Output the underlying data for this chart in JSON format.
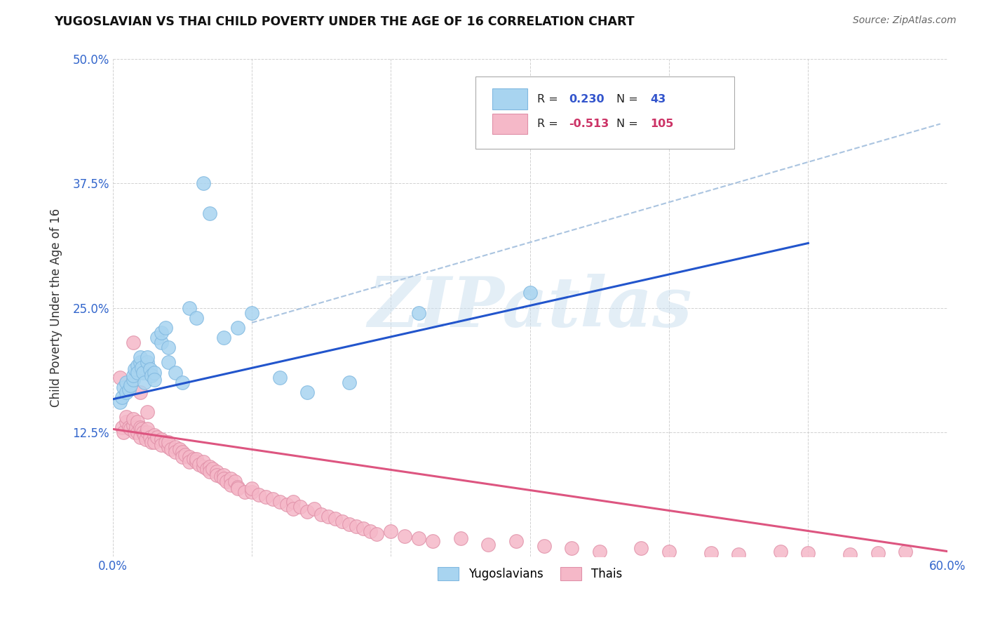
{
  "title": "YUGOSLAVIAN VS THAI CHILD POVERTY UNDER THE AGE OF 16 CORRELATION CHART",
  "source": "Source: ZipAtlas.com",
  "ylabel": "Child Poverty Under the Age of 16",
  "xlim": [
    0.0,
    0.6
  ],
  "ylim": [
    0.0,
    0.5
  ],
  "xticks": [
    0.0,
    0.1,
    0.2,
    0.3,
    0.4,
    0.5,
    0.6
  ],
  "xticklabels": [
    "0.0%",
    "",
    "",
    "",
    "",
    "",
    "60.0%"
  ],
  "yticks": [
    0.0,
    0.125,
    0.25,
    0.375,
    0.5
  ],
  "yticklabels": [
    "",
    "12.5%",
    "25.0%",
    "37.5%",
    "50.0%"
  ],
  "grid_color": "#cccccc",
  "background_color": "#ffffff",
  "watermark_text": "ZIPatlas",
  "yug_color": "#a8d4f0",
  "yug_edge_color": "#80b8e0",
  "thai_color": "#f5b8c8",
  "thai_edge_color": "#e090a8",
  "yug_R": 0.23,
  "yug_N": 43,
  "thai_R": -0.513,
  "thai_N": 105,
  "legend_label_yug": "Yugoslavians",
  "legend_label_thai": "Thais",
  "yug_line_color": "#2255cc",
  "thai_line_color": "#dd5580",
  "trend_line_color": "#aac4e0",
  "yug_scatter_x": [
    0.005,
    0.007,
    0.008,
    0.01,
    0.01,
    0.012,
    0.013,
    0.015,
    0.015,
    0.016,
    0.018,
    0.018,
    0.02,
    0.02,
    0.021,
    0.022,
    0.023,
    0.025,
    0.025,
    0.027,
    0.028,
    0.03,
    0.03,
    0.032,
    0.035,
    0.035,
    0.038,
    0.04,
    0.04,
    0.045,
    0.05,
    0.055,
    0.06,
    0.065,
    0.07,
    0.08,
    0.09,
    0.1,
    0.12,
    0.14,
    0.17,
    0.22,
    0.3
  ],
  "yug_scatter_y": [
    0.155,
    0.16,
    0.17,
    0.165,
    0.175,
    0.168,
    0.172,
    0.178,
    0.182,
    0.188,
    0.192,
    0.185,
    0.195,
    0.2,
    0.19,
    0.185,
    0.175,
    0.195,
    0.2,
    0.188,
    0.182,
    0.185,
    0.178,
    0.22,
    0.215,
    0.225,
    0.23,
    0.21,
    0.195,
    0.185,
    0.175,
    0.25,
    0.24,
    0.375,
    0.345,
    0.22,
    0.23,
    0.245,
    0.18,
    0.165,
    0.175,
    0.245,
    0.265
  ],
  "thai_scatter_x": [
    0.005,
    0.007,
    0.008,
    0.01,
    0.01,
    0.012,
    0.013,
    0.015,
    0.015,
    0.016,
    0.017,
    0.018,
    0.018,
    0.02,
    0.02,
    0.021,
    0.022,
    0.023,
    0.024,
    0.025,
    0.025,
    0.027,
    0.028,
    0.03,
    0.03,
    0.032,
    0.035,
    0.035,
    0.038,
    0.04,
    0.04,
    0.042,
    0.045,
    0.045,
    0.048,
    0.05,
    0.05,
    0.052,
    0.055,
    0.055,
    0.058,
    0.06,
    0.06,
    0.062,
    0.065,
    0.065,
    0.068,
    0.07,
    0.07,
    0.072,
    0.075,
    0.075,
    0.078,
    0.08,
    0.08,
    0.082,
    0.085,
    0.085,
    0.088,
    0.09,
    0.09,
    0.095,
    0.1,
    0.1,
    0.105,
    0.11,
    0.115,
    0.12,
    0.125,
    0.13,
    0.13,
    0.135,
    0.14,
    0.145,
    0.15,
    0.155,
    0.16,
    0.165,
    0.17,
    0.175,
    0.18,
    0.185,
    0.19,
    0.2,
    0.21,
    0.22,
    0.23,
    0.25,
    0.27,
    0.29,
    0.31,
    0.33,
    0.35,
    0.38,
    0.4,
    0.43,
    0.45,
    0.48,
    0.5,
    0.53,
    0.55,
    0.57,
    0.015,
    0.02,
    0.025
  ],
  "thai_scatter_y": [
    0.18,
    0.13,
    0.125,
    0.135,
    0.14,
    0.13,
    0.128,
    0.132,
    0.138,
    0.125,
    0.13,
    0.135,
    0.125,
    0.13,
    0.12,
    0.128,
    0.125,
    0.122,
    0.118,
    0.125,
    0.128,
    0.12,
    0.115,
    0.122,
    0.115,
    0.12,
    0.118,
    0.112,
    0.115,
    0.11,
    0.115,
    0.108,
    0.11,
    0.105,
    0.108,
    0.105,
    0.1,
    0.102,
    0.1,
    0.095,
    0.098,
    0.095,
    0.098,
    0.092,
    0.09,
    0.095,
    0.088,
    0.09,
    0.085,
    0.088,
    0.085,
    0.082,
    0.08,
    0.082,
    0.078,
    0.075,
    0.078,
    0.072,
    0.075,
    0.07,
    0.068,
    0.065,
    0.065,
    0.068,
    0.062,
    0.06,
    0.058,
    0.055,
    0.052,
    0.055,
    0.048,
    0.05,
    0.045,
    0.048,
    0.042,
    0.04,
    0.038,
    0.035,
    0.032,
    0.03,
    0.028,
    0.025,
    0.022,
    0.025,
    0.02,
    0.018,
    0.015,
    0.018,
    0.012,
    0.015,
    0.01,
    0.008,
    0.005,
    0.008,
    0.005,
    0.003,
    0.002,
    0.005,
    0.003,
    0.002,
    0.003,
    0.005,
    0.215,
    0.165,
    0.145
  ],
  "yug_line_x0": 0.0,
  "yug_line_y0": 0.158,
  "yug_line_x1": 0.5,
  "yug_line_y1": 0.315,
  "thai_line_x0": 0.0,
  "thai_line_y0": 0.128,
  "thai_line_x1": 0.6,
  "thai_line_y1": 0.005,
  "dash_line_x0": 0.1,
  "dash_line_y0": 0.235,
  "dash_line_x1": 0.595,
  "dash_line_y1": 0.435
}
